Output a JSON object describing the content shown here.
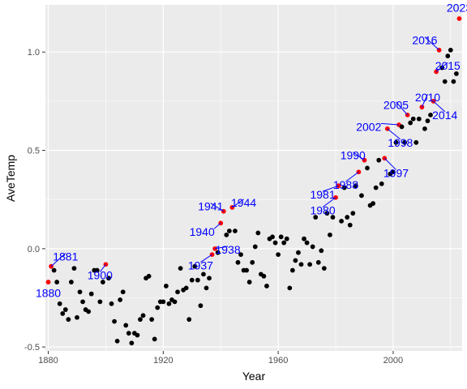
{
  "chart_data": {
    "type": "scatter",
    "xlabel": "Year",
    "ylabel": "AveTemp",
    "xlim": [
      1879,
      2024
    ],
    "ylim": [
      -0.52,
      1.24
    ],
    "x_ticks": [
      1880,
      1920,
      1960,
      2000
    ],
    "x_tick_labels": [
      "1880",
      "1920",
      "1960",
      "2000"
    ],
    "y_ticks": [
      -0.5,
      0.0,
      0.5,
      1.0
    ],
    "y_tick_labels": [
      "-0.5",
      "0.0",
      "0.5",
      "1.0"
    ],
    "grid": true,
    "colors": {
      "panel": "#ebebeb",
      "grid_major": "#ffffff",
      "point": "#000000",
      "highlight": "#ff0000",
      "label": "#0000ff",
      "tick_text": "#4d4d4d"
    },
    "points": [
      {
        "x": 1880,
        "y": -0.17
      },
      {
        "x": 1881,
        "y": -0.09
      },
      {
        "x": 1882,
        "y": -0.11
      },
      {
        "x": 1883,
        "y": -0.17
      },
      {
        "x": 1884,
        "y": -0.28
      },
      {
        "x": 1885,
        "y": -0.33
      },
      {
        "x": 1886,
        "y": -0.31
      },
      {
        "x": 1887,
        "y": -0.36
      },
      {
        "x": 1888,
        "y": -0.17
      },
      {
        "x": 1889,
        "y": -0.1
      },
      {
        "x": 1890,
        "y": -0.35
      },
      {
        "x": 1891,
        "y": -0.22
      },
      {
        "x": 1892,
        "y": -0.27
      },
      {
        "x": 1893,
        "y": -0.31
      },
      {
        "x": 1894,
        "y": -0.32
      },
      {
        "x": 1895,
        "y": -0.23
      },
      {
        "x": 1896,
        "y": -0.11
      },
      {
        "x": 1897,
        "y": -0.11
      },
      {
        "x": 1898,
        "y": -0.27
      },
      {
        "x": 1899,
        "y": -0.17
      },
      {
        "x": 1900,
        "y": -0.08
      },
      {
        "x": 1901,
        "y": -0.15
      },
      {
        "x": 1902,
        "y": -0.28
      },
      {
        "x": 1903,
        "y": -0.37
      },
      {
        "x": 1904,
        "y": -0.47
      },
      {
        "x": 1905,
        "y": -0.26
      },
      {
        "x": 1906,
        "y": -0.22
      },
      {
        "x": 1907,
        "y": -0.39
      },
      {
        "x": 1908,
        "y": -0.43
      },
      {
        "x": 1909,
        "y": -0.48
      },
      {
        "x": 1910,
        "y": -0.43
      },
      {
        "x": 1911,
        "y": -0.44
      },
      {
        "x": 1912,
        "y": -0.36
      },
      {
        "x": 1913,
        "y": -0.34
      },
      {
        "x": 1914,
        "y": -0.15
      },
      {
        "x": 1915,
        "y": -0.14
      },
      {
        "x": 1916,
        "y": -0.36
      },
      {
        "x": 1917,
        "y": -0.46
      },
      {
        "x": 1918,
        "y": -0.3
      },
      {
        "x": 1919,
        "y": -0.27
      },
      {
        "x": 1920,
        "y": -0.27
      },
      {
        "x": 1921,
        "y": -0.19
      },
      {
        "x": 1922,
        "y": -0.28
      },
      {
        "x": 1923,
        "y": -0.26
      },
      {
        "x": 1924,
        "y": -0.27
      },
      {
        "x": 1925,
        "y": -0.22
      },
      {
        "x": 1926,
        "y": -0.1
      },
      {
        "x": 1927,
        "y": -0.21
      },
      {
        "x": 1928,
        "y": -0.2
      },
      {
        "x": 1929,
        "y": -0.36
      },
      {
        "x": 1930,
        "y": -0.16
      },
      {
        "x": 1931,
        "y": -0.09
      },
      {
        "x": 1932,
        "y": -0.16
      },
      {
        "x": 1933,
        "y": -0.29
      },
      {
        "x": 1934,
        "y": -0.13
      },
      {
        "x": 1935,
        "y": -0.2
      },
      {
        "x": 1936,
        "y": -0.15
      },
      {
        "x": 1937,
        "y": -0.03
      },
      {
        "x": 1938,
        "y": 0.0
      },
      {
        "x": 1939,
        "y": -0.02
      },
      {
        "x": 1940,
        "y": 0.13
      },
      {
        "x": 1941,
        "y": 0.19
      },
      {
        "x": 1942,
        "y": 0.07
      },
      {
        "x": 1943,
        "y": 0.09
      },
      {
        "x": 1944,
        "y": 0.21
      },
      {
        "x": 1945,
        "y": 0.09
      },
      {
        "x": 1946,
        "y": -0.07
      },
      {
        "x": 1947,
        "y": -0.03
      },
      {
        "x": 1948,
        "y": -0.11
      },
      {
        "x": 1949,
        "y": -0.11
      },
      {
        "x": 1950,
        "y": -0.17
      },
      {
        "x": 1951,
        "y": -0.07
      },
      {
        "x": 1952,
        "y": 0.01
      },
      {
        "x": 1953,
        "y": 0.08
      },
      {
        "x": 1954,
        "y": -0.13
      },
      {
        "x": 1955,
        "y": -0.14
      },
      {
        "x": 1956,
        "y": -0.19
      },
      {
        "x": 1957,
        "y": 0.05
      },
      {
        "x": 1958,
        "y": 0.06
      },
      {
        "x": 1959,
        "y": 0.03
      },
      {
        "x": 1960,
        "y": -0.03
      },
      {
        "x": 1961,
        "y": 0.06
      },
      {
        "x": 1962,
        "y": 0.03
      },
      {
        "x": 1963,
        "y": 0.05
      },
      {
        "x": 1964,
        "y": -0.2
      },
      {
        "x": 1965,
        "y": -0.11
      },
      {
        "x": 1966,
        "y": -0.06
      },
      {
        "x": 1967,
        "y": -0.02
      },
      {
        "x": 1968,
        "y": -0.08
      },
      {
        "x": 1969,
        "y": 0.05
      },
      {
        "x": 1970,
        "y": 0.03
      },
      {
        "x": 1971,
        "y": -0.08
      },
      {
        "x": 1972,
        "y": 0.01
      },
      {
        "x": 1973,
        "y": 0.16
      },
      {
        "x": 1974,
        "y": -0.07
      },
      {
        "x": 1975,
        "y": -0.01
      },
      {
        "x": 1976,
        "y": -0.1
      },
      {
        "x": 1977,
        "y": 0.18
      },
      {
        "x": 1978,
        "y": 0.07
      },
      {
        "x": 1979,
        "y": 0.16
      },
      {
        "x": 1980,
        "y": 0.26
      },
      {
        "x": 1981,
        "y": 0.32
      },
      {
        "x": 1982,
        "y": 0.14
      },
      {
        "x": 1983,
        "y": 0.31
      },
      {
        "x": 1984,
        "y": 0.16
      },
      {
        "x": 1985,
        "y": 0.12
      },
      {
        "x": 1986,
        "y": 0.18
      },
      {
        "x": 1987,
        "y": 0.32
      },
      {
        "x": 1988,
        "y": 0.39
      },
      {
        "x": 1989,
        "y": 0.27
      },
      {
        "x": 1990,
        "y": 0.45
      },
      {
        "x": 1991,
        "y": 0.41
      },
      {
        "x": 1992,
        "y": 0.22
      },
      {
        "x": 1993,
        "y": 0.23
      },
      {
        "x": 1994,
        "y": 0.31
      },
      {
        "x": 1995,
        "y": 0.45
      },
      {
        "x": 1996,
        "y": 0.33
      },
      {
        "x": 1997,
        "y": 0.46
      },
      {
        "x": 1998,
        "y": 0.61
      },
      {
        "x": 1999,
        "y": 0.38
      },
      {
        "x": 2000,
        "y": 0.39
      },
      {
        "x": 2001,
        "y": 0.54
      },
      {
        "x": 2002,
        "y": 0.63
      },
      {
        "x": 2003,
        "y": 0.62
      },
      {
        "x": 2004,
        "y": 0.54
      },
      {
        "x": 2005,
        "y": 0.68
      },
      {
        "x": 2006,
        "y": 0.64
      },
      {
        "x": 2007,
        "y": 0.66
      },
      {
        "x": 2008,
        "y": 0.54
      },
      {
        "x": 2009,
        "y": 0.66
      },
      {
        "x": 2010,
        "y": 0.72
      },
      {
        "x": 2011,
        "y": 0.61
      },
      {
        "x": 2012,
        "y": 0.65
      },
      {
        "x": 2013,
        "y": 0.68
      },
      {
        "x": 2014,
        "y": 0.75
      },
      {
        "x": 2015,
        "y": 0.9
      },
      {
        "x": 2016,
        "y": 1.01
      },
      {
        "x": 2017,
        "y": 0.92
      },
      {
        "x": 2018,
        "y": 0.85
      },
      {
        "x": 2019,
        "y": 0.98
      },
      {
        "x": 2020,
        "y": 1.01
      },
      {
        "x": 2021,
        "y": 0.85
      },
      {
        "x": 2022,
        "y": 0.89
      },
      {
        "x": 2023,
        "y": 1.17
      }
    ],
    "labeled_points": [
      {
        "x": 1880,
        "y": -0.17,
        "label": "1880",
        "lx": 1880,
        "ly": -0.225,
        "anchor": "middle"
      },
      {
        "x": 1881,
        "y": -0.09,
        "label": "1881",
        "lx": 1886,
        "ly": -0.04,
        "anchor": "middle"
      },
      {
        "x": 1900,
        "y": -0.08,
        "label": "1900",
        "lx": 1898,
        "ly": -0.135,
        "anchor": "middle"
      },
      {
        "x": 1937,
        "y": -0.03,
        "label": "1937",
        "lx": 1933,
        "ly": -0.085,
        "anchor": "middle"
      },
      {
        "x": 1938,
        "y": 0.0,
        "label": "1938",
        "lx": 1942.5,
        "ly": -0.005,
        "anchor": "middle"
      },
      {
        "x": 1940,
        "y": 0.13,
        "label": "1940",
        "lx": 1933.5,
        "ly": 0.085,
        "anchor": "middle"
      },
      {
        "x": 1941,
        "y": 0.19,
        "label": "1941",
        "lx": 1936.5,
        "ly": 0.215,
        "anchor": "middle"
      },
      {
        "x": 1944,
        "y": 0.21,
        "label": "1944",
        "lx": 1948,
        "ly": 0.235,
        "anchor": "middle"
      },
      {
        "x": 1980,
        "y": 0.26,
        "label": "1980",
        "lx": 1975.5,
        "ly": 0.195,
        "anchor": "middle"
      },
      {
        "x": 1981,
        "y": 0.32,
        "label": "1981",
        "lx": 1975.5,
        "ly": 0.275,
        "anchor": "middle"
      },
      {
        "x": 1988,
        "y": 0.39,
        "label": "1988",
        "lx": 1983.5,
        "ly": 0.325,
        "anchor": "middle"
      },
      {
        "x": 1990,
        "y": 0.45,
        "label": "1990",
        "lx": 1986,
        "ly": 0.475,
        "anchor": "middle"
      },
      {
        "x": 1997,
        "y": 0.46,
        "label": "1997",
        "lx": 2001,
        "ly": 0.385,
        "anchor": "middle"
      },
      {
        "x": 1998,
        "y": 0.61,
        "label": "1998",
        "lx": 2002.5,
        "ly": 0.54,
        "anchor": "middle"
      },
      {
        "x": 2002,
        "y": 0.63,
        "label": "2002",
        "lx": 1991.5,
        "ly": 0.62,
        "anchor": "middle"
      },
      {
        "x": 2005,
        "y": 0.68,
        "label": "2005",
        "lx": 2001,
        "ly": 0.73,
        "anchor": "middle"
      },
      {
        "x": 2010,
        "y": 0.72,
        "label": "2010",
        "lx": 2012,
        "ly": 0.77,
        "anchor": "middle"
      },
      {
        "x": 2014,
        "y": 0.75,
        "label": "2014",
        "lx": 2018,
        "ly": 0.68,
        "anchor": "middle"
      },
      {
        "x": 2015,
        "y": 0.9,
        "label": "2015",
        "lx": 2019,
        "ly": 0.93,
        "anchor": "middle"
      },
      {
        "x": 2016,
        "y": 1.01,
        "label": "2016",
        "lx": 2011,
        "ly": 1.06,
        "anchor": "middle"
      },
      {
        "x": 2023,
        "y": 1.17,
        "label": "2023",
        "lx": 2023,
        "ly": 1.225,
        "anchor": "middle"
      }
    ]
  }
}
